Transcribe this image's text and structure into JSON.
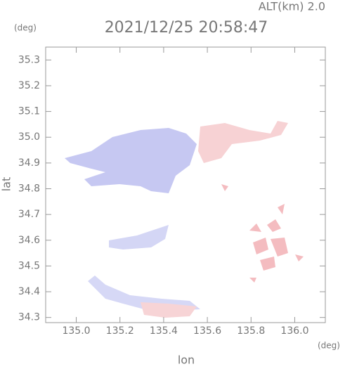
{
  "chart_data": {
    "type": "radar-map",
    "title": "2021/12/25 20:58:47",
    "subtitle": "ALT(km)  2.0",
    "y_unit": "(deg)",
    "x_unit": "(deg)",
    "x_label": "lon",
    "y_label": "lat",
    "xlim": [
      134.86,
      136.14
    ],
    "ylim": [
      34.28,
      35.35
    ],
    "xticks": [
      {
        "value": 135,
        "label": "135.0"
      },
      135.2,
      135.4,
      135.6,
      135.8,
      {
        "value": 136,
        "label": "136.0"
      }
    ],
    "yticks": [
      35.3,
      35.2,
      35.1,
      {
        "value": 35,
        "label": "35.0"
      },
      34.9,
      34.8,
      34.7,
      34.6,
      34.5,
      34.4,
      34.3
    ]
  }
}
